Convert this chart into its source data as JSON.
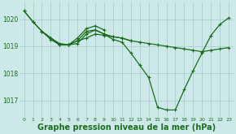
{
  "bg_color": "#cce8e8",
  "grid_color": "#aacece",
  "line_color": "#1a6e1a",
  "marker_color": "#1a6e1a",
  "xlabel": "Graphe pression niveau de la mer (hPa)",
  "xlabel_fontsize": 7,
  "yticks": [
    1017,
    1018,
    1019,
    1020
  ],
  "xticks": [
    0,
    1,
    2,
    3,
    4,
    5,
    6,
    7,
    8,
    9,
    10,
    11,
    12,
    13,
    14,
    15,
    16,
    17,
    18,
    19,
    20,
    21,
    22,
    23
  ],
  "xlim": [
    -0.5,
    23.5
  ],
  "ylim": [
    1016.4,
    1020.6
  ],
  "lines": [
    {
      "x": [
        0,
        1,
        2,
        3,
        4,
        5,
        6,
        7,
        8,
        9,
        10,
        11,
        12,
        13,
        14,
        15,
        16,
        17,
        18,
        19,
        20,
        21,
        22,
        23
      ],
      "y": [
        1020.3,
        1019.9,
        1019.55,
        1019.3,
        1019.05,
        1019.05,
        1019.2,
        1019.3,
        1019.45,
        1019.4,
        1019.35,
        1019.3,
        1019.2,
        1019.15,
        1019.1,
        1019.05,
        1019.0,
        1018.95,
        1018.9,
        1018.85,
        1018.8,
        1018.85,
        1018.9,
        1018.95
      ]
    },
    {
      "x": [
        0,
        1,
        2,
        3,
        4,
        5,
        6,
        7,
        8,
        9,
        10,
        11,
        12,
        13,
        14,
        15,
        16,
        17,
        18,
        19,
        20,
        21,
        22,
        23
      ],
      "y": [
        1020.3,
        1019.9,
        1019.55,
        1019.3,
        1019.05,
        1019.05,
        1019.2,
        1019.55,
        1019.6,
        1019.45,
        1019.25,
        1019.15,
        1018.75,
        1018.3,
        1017.85,
        1016.75,
        1016.65,
        1016.65,
        1017.4,
        1018.1,
        1018.75,
        1019.4,
        1019.8,
        1020.05
      ]
    },
    {
      "x": [
        2,
        3,
        4,
        5,
        6,
        7,
        8,
        9,
        10,
        11,
        12
      ],
      "y": [
        1019.55,
        1019.3,
        1019.1,
        1019.05,
        1019.1,
        1019.45,
        1019.6,
        1019.45,
        1019.35,
        1019.3,
        1019.2
      ]
    },
    {
      "x": [
        2,
        3,
        4,
        5,
        6,
        7,
        8,
        9
      ],
      "y": [
        1019.55,
        1019.25,
        1019.05,
        1019.05,
        1019.3,
        1019.65,
        1019.75,
        1019.6
      ]
    }
  ]
}
